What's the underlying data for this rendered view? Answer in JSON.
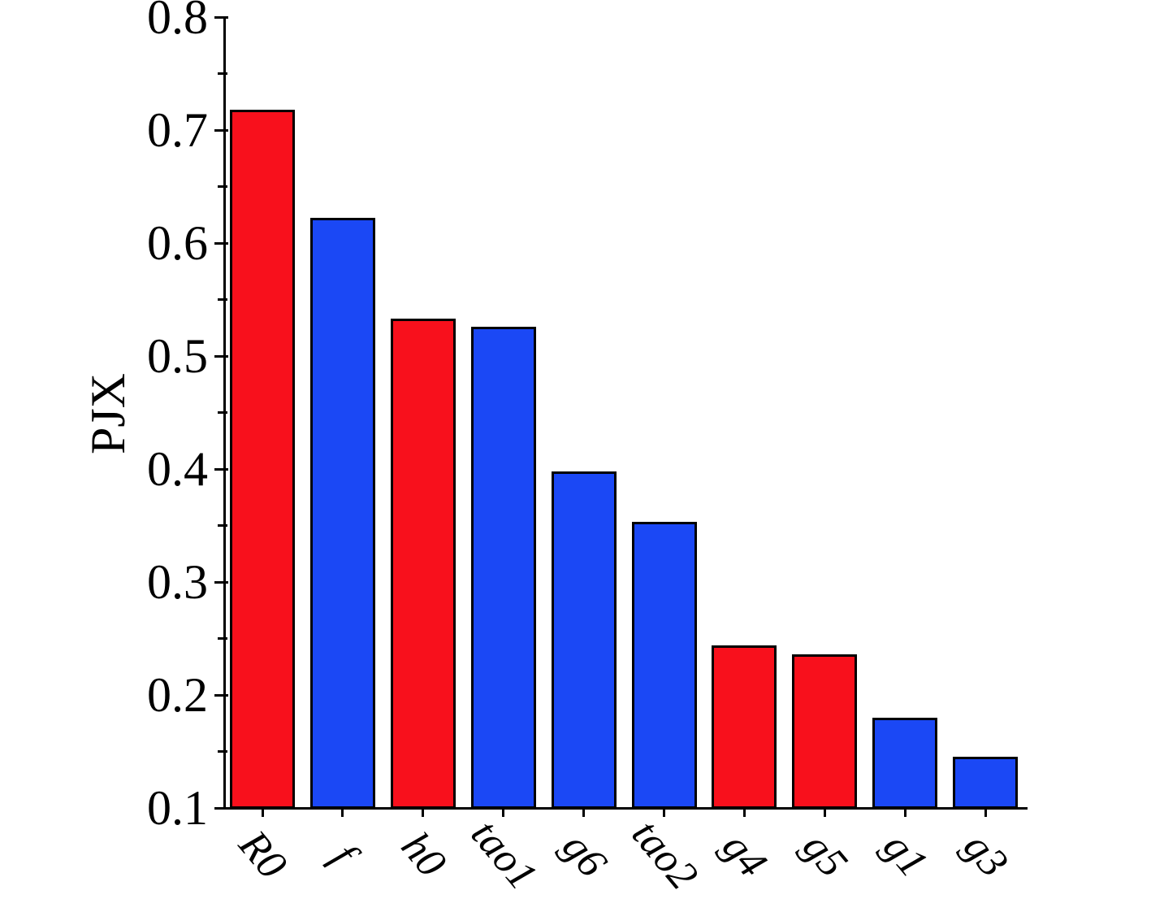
{
  "chart_data": {
    "type": "bar",
    "title": "",
    "xlabel": "",
    "ylabel": "PJX",
    "categories": [
      "R0",
      "f",
      "h0",
      "tao1",
      "g6",
      "tao2",
      "g4",
      "g5",
      "g1",
      "g3"
    ],
    "values": [
      0.718,
      0.622,
      0.533,
      0.526,
      0.398,
      0.353,
      0.244,
      0.236,
      0.18,
      0.145
    ],
    "bar_colors": [
      "red",
      "blue",
      "red",
      "blue",
      "blue",
      "blue",
      "red",
      "red",
      "blue",
      "blue"
    ],
    "palette": {
      "red": "#f8101c",
      "blue": "#1b48f5"
    },
    "bar_edge_color": "#000000",
    "axis_color": "#000000",
    "ylim": [
      0.1,
      0.8
    ],
    "yticks": [
      0.1,
      0.2,
      0.3,
      0.4,
      0.5,
      0.6,
      0.7,
      0.8
    ],
    "ytick_labels": [
      "0.1",
      "0.2",
      "0.3",
      "0.4",
      "0.5",
      "0.6",
      "0.7",
      "0.8"
    ],
    "minor_yticks": [
      0.15,
      0.25,
      0.35,
      0.45,
      0.55,
      0.65,
      0.75
    ],
    "grid": false,
    "legend": null,
    "x_tick_label_rotation_deg": 50
  }
}
